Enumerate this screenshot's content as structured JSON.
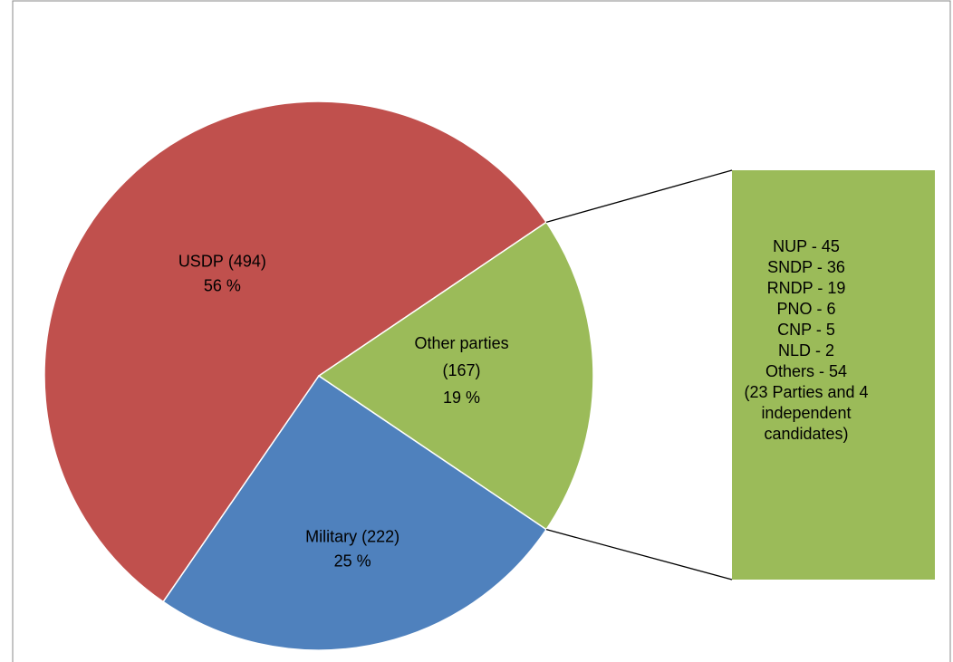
{
  "chart_data": {
    "type": "pie-of-bar",
    "categories": [
      "USDP",
      "Military",
      "Other parties"
    ],
    "values": [
      494,
      222,
      167
    ],
    "value_labels": [
      "(494)",
      "(222)",
      "(167)"
    ],
    "percents": [
      56,
      25,
      19
    ],
    "percent_labels": [
      "56 %",
      "25 %",
      "19 %"
    ],
    "colors": [
      "#C0504D",
      "#4F81BD",
      "#9BBB59"
    ],
    "breakdown": [
      "NUP - 45",
      "SNDP - 36",
      "RNDP - 19",
      "PNO - 6",
      "CNP - 5",
      "NLD - 2",
      "Others - 54"
    ],
    "breakdown_note": "(23 Parties and 4 independent candidates)"
  }
}
